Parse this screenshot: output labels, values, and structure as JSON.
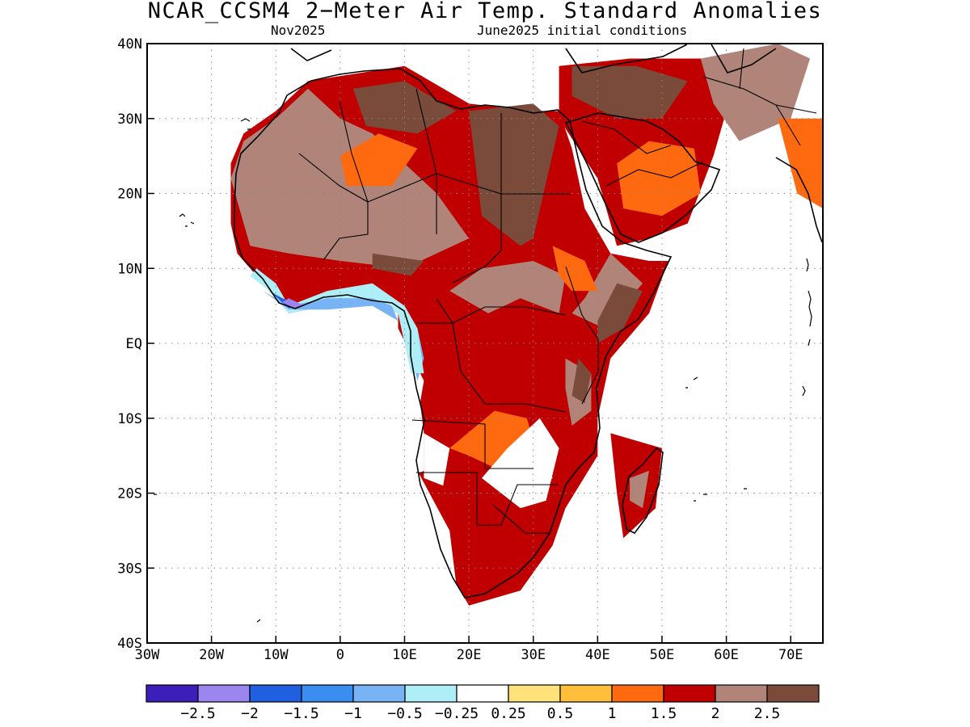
{
  "title": "NCAR_CCSM4 2−Meter Air Temp. Standard Anomalies",
  "subtitle_left": "Nov2025",
  "subtitle_right": "June2025 initial conditions",
  "map": {
    "lon_range": [
      -30,
      75
    ],
    "lat_range": [
      -40,
      40
    ],
    "lon_ticks": [
      {
        "value": -30,
        "label": "30W"
      },
      {
        "value": -20,
        "label": "20W"
      },
      {
        "value": -10,
        "label": "10W"
      },
      {
        "value": 0,
        "label": "0"
      },
      {
        "value": 10,
        "label": "10E"
      },
      {
        "value": 20,
        "label": "20E"
      },
      {
        "value": 30,
        "label": "30E"
      },
      {
        "value": 40,
        "label": "40E"
      },
      {
        "value": 50,
        "label": "50E"
      },
      {
        "value": 60,
        "label": "60E"
      },
      {
        "value": 70,
        "label": "70E"
      }
    ],
    "lat_ticks": [
      {
        "value": 40,
        "label": "40N"
      },
      {
        "value": 30,
        "label": "30N"
      },
      {
        "value": 20,
        "label": "20N"
      },
      {
        "value": 10,
        "label": "10N"
      },
      {
        "value": 0,
        "label": "EQ"
      },
      {
        "value": -10,
        "label": "10S"
      },
      {
        "value": -20,
        "label": "20S"
      },
      {
        "value": -30,
        "label": "30S"
      },
      {
        "value": -40,
        "label": "40S"
      }
    ],
    "grid": "dotted"
  },
  "colorbar": {
    "colors": [
      "#3b1fb8",
      "#9b86f0",
      "#1f5fe0",
      "#3a8ef0",
      "#78b4f5",
      "#aeeef7",
      "#ffffff",
      "#ffe37a",
      "#ffbf3a",
      "#ff6a10",
      "#c00000",
      "#b08478",
      "#7a4a3a"
    ],
    "labels": [
      "−2.5",
      "−2",
      "−1.5",
      "−1",
      "−0.5",
      "−0.25",
      "0.25",
      "0.5",
      "1",
      "1.5",
      "2",
      "2.5"
    ]
  },
  "regions": [
    {
      "level": 1.5,
      "points": [
        [
          -17,
          24
        ],
        [
          -15,
          28
        ],
        [
          -10,
          31
        ],
        [
          -5,
          35
        ],
        [
          10,
          37
        ],
        [
          20,
          32
        ],
        [
          30,
          31
        ],
        [
          34,
          31
        ],
        [
          36,
          26
        ],
        [
          38,
          18
        ],
        [
          42,
          12
        ],
        [
          48,
          11
        ],
        [
          51,
          11
        ],
        [
          48,
          4
        ],
        [
          42,
          -2
        ],
        [
          40,
          -10
        ],
        [
          40,
          -15
        ],
        [
          35,
          -22
        ],
        [
          33,
          -27
        ],
        [
          28,
          -33
        ],
        [
          20,
          -35
        ],
        [
          18,
          -32
        ],
        [
          17,
          -25
        ],
        [
          12,
          -17
        ],
        [
          12,
          -10
        ],
        [
          13,
          -5
        ],
        [
          9,
          2
        ],
        [
          9,
          4
        ],
        [
          4,
          6
        ],
        [
          -2,
          5
        ],
        [
          -8,
          4
        ],
        [
          -11,
          7
        ],
        [
          -16,
          12
        ],
        [
          -17,
          16
        ],
        [
          -17,
          21
        ]
      ]
    },
    {
      "level": 2,
      "points": [
        [
          -17,
          22
        ],
        [
          -15,
          27
        ],
        [
          -10,
          30
        ],
        [
          -5,
          34
        ],
        [
          0,
          30
        ],
        [
          5,
          28
        ],
        [
          10,
          24
        ],
        [
          15,
          20
        ],
        [
          20,
          14
        ],
        [
          10,
          10
        ],
        [
          0,
          11
        ],
        [
          -8,
          12
        ],
        [
          -14,
          13
        ]
      ]
    },
    {
      "level": 1,
      "points": [
        [
          0,
          25
        ],
        [
          6,
          28
        ],
        [
          12,
          26
        ],
        [
          8,
          21
        ],
        [
          1,
          21
        ]
      ]
    },
    {
      "level": 2.5,
      "points": [
        [
          2,
          34
        ],
        [
          10,
          35
        ],
        [
          18,
          31
        ],
        [
          12,
          28
        ],
        [
          4,
          29
        ]
      ]
    },
    {
      "level": 2.5,
      "points": [
        [
          20,
          31
        ],
        [
          30,
          32
        ],
        [
          34,
          29
        ],
        [
          30,
          14
        ],
        [
          28,
          13
        ],
        [
          22,
          17
        ]
      ]
    },
    {
      "level": 2.5,
      "points": [
        [
          5,
          12
        ],
        [
          13,
          11
        ],
        [
          11,
          9
        ],
        [
          5,
          10
        ]
      ]
    },
    {
      "level": 2,
      "points": [
        [
          17,
          7
        ],
        [
          23,
          4
        ],
        [
          28,
          6
        ],
        [
          34,
          4
        ],
        [
          35,
          9
        ],
        [
          30,
          11
        ],
        [
          22,
          10
        ]
      ]
    },
    {
      "level": 2,
      "points": [
        [
          36,
          4
        ],
        [
          41,
          2
        ],
        [
          44,
          5
        ],
        [
          47,
          8
        ],
        [
          42,
          12
        ],
        [
          38,
          6
        ]
      ]
    },
    {
      "level": 2.5,
      "points": [
        [
          40,
          0
        ],
        [
          44,
          2
        ],
        [
          47,
          7
        ],
        [
          43,
          8
        ],
        [
          40,
          3
        ]
      ]
    },
    {
      "level": 2,
      "points": [
        [
          35,
          -2
        ],
        [
          39,
          -4
        ],
        [
          39,
          -9
        ],
        [
          36,
          -11
        ],
        [
          35,
          -6
        ]
      ]
    },
    {
      "level": 2.5,
      "points": [
        [
          37,
          -2
        ],
        [
          39,
          -4
        ],
        [
          38,
          -8
        ],
        [
          36,
          -7
        ]
      ]
    },
    {
      "level": 1,
      "points": [
        [
          33,
          13
        ],
        [
          38,
          11
        ],
        [
          40,
          7
        ],
        [
          36,
          7
        ],
        [
          34,
          9
        ]
      ]
    },
    {
      "level": 1,
      "points": [
        [
          24,
          -9
        ],
        [
          29,
          -10
        ],
        [
          31,
          -16
        ],
        [
          25,
          -17
        ],
        [
          20,
          -15
        ],
        [
          17,
          -14
        ]
      ]
    },
    {
      "level": 0,
      "points": [
        [
          26,
          -14
        ],
        [
          31,
          -10
        ],
        [
          34,
          -14
        ],
        [
          32,
          -21
        ],
        [
          28,
          -22
        ],
        [
          22,
          -18
        ]
      ]
    },
    {
      "level": -0.25,
      "points": [
        [
          26,
          -15
        ],
        [
          31,
          -13
        ],
        [
          33,
          -18
        ],
        [
          29,
          -20
        ],
        [
          24,
          -17
        ]
      ]
    },
    {
      "level": 0,
      "points": [
        [
          13,
          -12
        ],
        [
          17,
          -14
        ],
        [
          16,
          -19
        ],
        [
          13,
          -18
        ]
      ]
    },
    {
      "level": -0.25,
      "points": [
        [
          10,
          -11
        ],
        [
          12,
          -5
        ],
        [
          13,
          -12
        ],
        [
          13,
          -17
        ],
        [
          11,
          -18
        ],
        [
          12,
          -12
        ]
      ]
    },
    {
      "level": -1,
      "points": [
        [
          10,
          2
        ],
        [
          12,
          -5
        ],
        [
          13,
          -2
        ],
        [
          12,
          2
        ]
      ]
    },
    {
      "level": -0.5,
      "points": [
        [
          -13,
          10
        ],
        [
          -10,
          8
        ],
        [
          -8,
          5
        ],
        [
          -2,
          7
        ],
        [
          5,
          8
        ],
        [
          10,
          5
        ],
        [
          12,
          2
        ],
        [
          13,
          -4
        ],
        [
          11,
          -4
        ],
        [
          9,
          4
        ],
        [
          4,
          6
        ],
        [
          -2,
          5
        ],
        [
          -8,
          4
        ],
        [
          -11,
          7
        ],
        [
          -14,
          9
        ]
      ]
    },
    {
      "level": -1,
      "points": [
        [
          -12,
          7
        ],
        [
          -8,
          5
        ],
        [
          -2,
          6
        ],
        [
          5,
          6
        ],
        [
          8,
          5
        ],
        [
          9,
          3
        ],
        [
          5,
          5
        ],
        [
          -2,
          4.5
        ],
        [
          -8,
          4.5
        ]
      ]
    },
    {
      "level": -2,
      "points": [
        [
          -11,
          7
        ],
        [
          -8,
          4.7
        ],
        [
          -6,
          5
        ],
        [
          -9,
          6
        ]
      ]
    },
    {
      "level": -2.5,
      "points": [
        [
          -9,
          5.5
        ],
        [
          -7,
          4.6
        ],
        [
          -5.5,
          5
        ],
        [
          -8,
          6
        ]
      ]
    },
    {
      "level": 1.5,
      "points": [
        [
          34,
          37
        ],
        [
          45,
          38
        ],
        [
          57,
          38
        ],
        [
          60,
          31
        ],
        [
          58,
          25
        ],
        [
          54,
          16
        ],
        [
          48,
          14
        ],
        [
          43,
          13
        ],
        [
          40,
          22
        ],
        [
          34,
          30
        ]
      ]
    },
    {
      "level": 2.5,
      "points": [
        [
          36,
          37
        ],
        [
          46,
          37
        ],
        [
          54,
          35
        ],
        [
          50,
          30
        ],
        [
          43,
          30
        ],
        [
          36,
          33
        ]
      ]
    },
    {
      "level": 1,
      "points": [
        [
          43,
          24
        ],
        [
          48,
          27
        ],
        [
          55,
          26
        ],
        [
          56,
          20
        ],
        [
          50,
          17
        ],
        [
          44,
          18
        ]
      ]
    },
    {
      "level": 2,
      "points": [
        [
          56,
          38
        ],
        [
          68,
          40
        ],
        [
          73,
          38
        ],
        [
          70,
          30
        ],
        [
          62,
          27
        ],
        [
          58,
          32
        ]
      ]
    },
    {
      "level": 1,
      "points": [
        [
          68,
          30
        ],
        [
          75,
          30
        ],
        [
          75,
          18
        ],
        [
          71,
          20
        ]
      ]
    },
    {
      "level": 1.5,
      "points": [
        [
          42,
          -12
        ],
        [
          50,
          -14
        ],
        [
          49,
          -22
        ],
        [
          44,
          -26
        ],
        [
          43,
          -20
        ]
      ]
    },
    {
      "level": 2,
      "points": [
        [
          45,
          -18
        ],
        [
          48,
          -17
        ],
        [
          47,
          -22
        ],
        [
          45,
          -21
        ]
      ]
    }
  ]
}
